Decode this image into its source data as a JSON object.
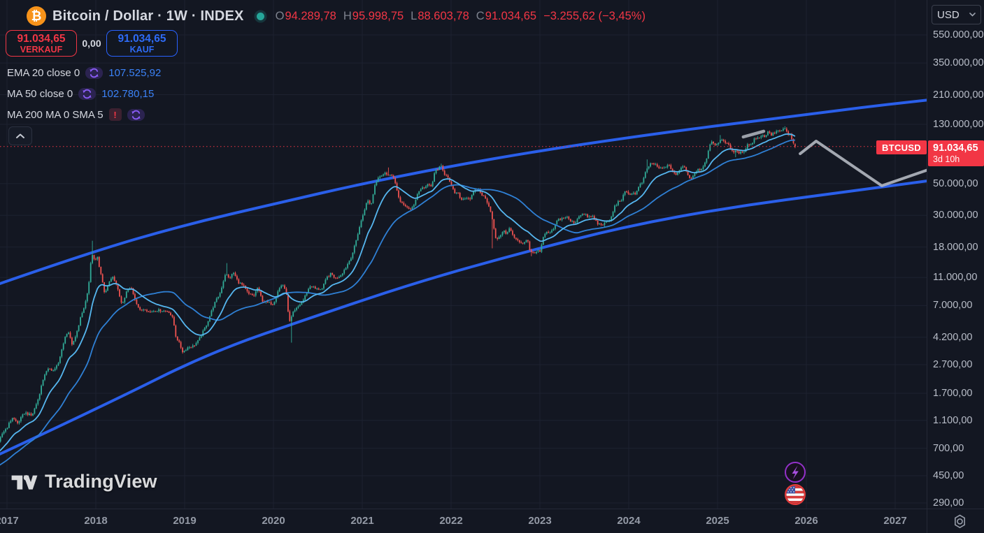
{
  "colors": {
    "background": "#131722",
    "grid": "#1d2230",
    "text_primary": "#d5d8e0",
    "text_secondary": "#7d818d",
    "axis_text": "#b9bec9",
    "red": "#f23645",
    "blue": "#2962ff",
    "value_blue": "#3b82f6",
    "candle_up": "#31ab97",
    "candle_down": "#ef5350",
    "ema20_line": "#56b7f0",
    "ma50_line": "#2f80d5",
    "channel_blue": "#2b63f6",
    "projection_gray": "#b4b8c1",
    "bitcoin_orange": "#f7931a",
    "status_dot_teal": "#26a69a",
    "label_red_bg": "#f23645",
    "purple_icon": "#8a5cf6",
    "flag_ring_red": "#e23b3b"
  },
  "header": {
    "bitcoin_glyph": "₿",
    "symbol_title": "Bitcoin / Dollar · 1W · INDEX",
    "ohlc": {
      "o_label": "O",
      "o": "94.289,78",
      "h_label": "H",
      "h": "95.998,75",
      "l_label": "L",
      "l": "88.603,78",
      "c_label": "C",
      "c": "91.034,65",
      "change": "−3.255,62 (−3,45%)"
    }
  },
  "trade_panel": {
    "sell": {
      "price": "91.034,65",
      "label": "VERKAUF"
    },
    "spread": "0,00",
    "buy": {
      "price": "91.034,65",
      "label": "KAUF"
    }
  },
  "indicators": [
    {
      "name": "EMA 20 close 0",
      "value": "107.525,92",
      "error": false
    },
    {
      "name": "MA 50 close 0",
      "value": "102.780,15",
      "error": false
    },
    {
      "name": "MA 200 MA 0 SMA 5",
      "value": "",
      "error": true
    }
  ],
  "chart_label": {
    "symbol": "BTCUSD"
  },
  "price_axis": {
    "currency": "USD",
    "current": {
      "price": "91.034,65",
      "countdown": "3d 10h"
    },
    "labels": [
      {
        "text": "550.000,00",
        "value": 550000
      },
      {
        "text": "350.000,00",
        "value": 350000
      },
      {
        "text": "210.000,00",
        "value": 210000
      },
      {
        "text": "130.000,00",
        "value": 130000
      },
      {
        "text": "50.000,00",
        "value": 50000
      },
      {
        "text": "30.000,00",
        "value": 30000
      },
      {
        "text": "18.000,00",
        "value": 18000
      },
      {
        "text": "11.000,00",
        "value": 11000
      },
      {
        "text": "7.000,00",
        "value": 7000
      },
      {
        "text": "4.200,00",
        "value": 4200
      },
      {
        "text": "2.700,00",
        "value": 2700
      },
      {
        "text": "1.700,00",
        "value": 1700
      },
      {
        "text": "1.100,00",
        "value": 1100
      },
      {
        "text": "700,00",
        "value": 700
      },
      {
        "text": "450,00",
        "value": 450
      },
      {
        "text": "290,00",
        "value": 290
      }
    ]
  },
  "time_axis": {
    "years": [
      {
        "label": "2017",
        "value": 2017
      },
      {
        "label": "2018",
        "value": 2018
      },
      {
        "label": "2019",
        "value": 2019
      },
      {
        "label": "2020",
        "value": 2020
      },
      {
        "label": "2021",
        "value": 2021
      },
      {
        "label": "2022",
        "value": 2022
      },
      {
        "label": "2023",
        "value": 2023
      },
      {
        "label": "2024",
        "value": 2024
      },
      {
        "label": "2025",
        "value": 2025
      },
      {
        "label": "2026",
        "value": 2026
      },
      {
        "label": "2027",
        "value": 2027
      }
    ]
  },
  "watermark": {
    "text": "TradingView"
  },
  "chart_data": {
    "type": "candlestick",
    "symbol": "BTCUSD",
    "timeframe": "1W",
    "price_scale": "log",
    "x_domain_years": [
      2016.92,
      2027.42
    ],
    "current_candle": {
      "open": 94289.78,
      "high": 95998.75,
      "low": 88603.78,
      "close": 91034.65,
      "change": -3255.62,
      "change_pct": -3.45
    },
    "overlays": [
      {
        "name": "EMA 20",
        "value": 107525.92,
        "color_key": "ema20_line"
      },
      {
        "name": "MA 50",
        "value": 102780.15,
        "color_key": "ma50_line"
      }
    ],
    "series_keypoints": [
      [
        2015.9,
        390
      ],
      [
        2016.15,
        418
      ],
      [
        2016.4,
        452
      ],
      [
        2016.55,
        578
      ],
      [
        2016.7,
        640
      ],
      [
        2016.8,
        700
      ],
      [
        2016.9,
        745
      ],
      [
        2016.95,
        900
      ],
      [
        2017,
        980
      ],
      [
        2017.06,
        1150
      ],
      [
        2017.12,
        1050
      ],
      [
        2017.2,
        1250
      ],
      [
        2017.28,
        1180
      ],
      [
        2017.35,
        1550
      ],
      [
        2017.42,
        2300
      ],
      [
        2017.48,
        2550
      ],
      [
        2017.52,
        2450
      ],
      [
        2017.58,
        2750
      ],
      [
        2017.65,
        4200
      ],
      [
        2017.7,
        4650
      ],
      [
        2017.73,
        3650
      ],
      [
        2017.78,
        4350
      ],
      [
        2017.83,
        5800
      ],
      [
        2017.88,
        7200
      ],
      [
        2017.92,
        9800
      ],
      [
        2017.955,
        16500
      ],
      [
        2017.985,
        14300
      ],
      [
        2018.02,
        15200
      ],
      [
        2018.06,
        11300
      ],
      [
        2018.1,
        8400
      ],
      [
        2018.15,
        10200
      ],
      [
        2018.2,
        11100
      ],
      [
        2018.25,
        8900
      ],
      [
        2018.3,
        7000
      ],
      [
        2018.35,
        8900
      ],
      [
        2018.4,
        9300
      ],
      [
        2018.45,
        7500
      ],
      [
        2018.5,
        6400
      ],
      [
        2018.55,
        6700
      ],
      [
        2018.6,
        6300
      ],
      [
        2018.68,
        6500
      ],
      [
        2018.75,
        6450
      ],
      [
        2018.82,
        6400
      ],
      [
        2018.87,
        5600
      ],
      [
        2018.9,
        4300
      ],
      [
        2018.94,
        3800
      ],
      [
        2018.98,
        3300
      ],
      [
        2019.03,
        3550
      ],
      [
        2019.1,
        3650
      ],
      [
        2019.16,
        4000
      ],
      [
        2019.25,
        5200
      ],
      [
        2019.33,
        7100
      ],
      [
        2019.4,
        8600
      ],
      [
        2019.46,
        11800
      ],
      [
        2019.5,
        10800
      ],
      [
        2019.55,
        11900
      ],
      [
        2019.6,
        10300
      ],
      [
        2019.66,
        9600
      ],
      [
        2019.72,
        8400
      ],
      [
        2019.78,
        8200
      ],
      [
        2019.82,
        9300
      ],
      [
        2019.88,
        7500
      ],
      [
        2019.94,
        7300
      ],
      [
        2020,
        7200
      ],
      [
        2020.05,
        8900
      ],
      [
        2020.1,
        9900
      ],
      [
        2020.14,
        8900
      ],
      [
        2020.18,
        5300
      ],
      [
        2020.22,
        6200
      ],
      [
        2020.28,
        6900
      ],
      [
        2020.33,
        7500
      ],
      [
        2020.38,
        8800
      ],
      [
        2020.42,
        9700
      ],
      [
        2020.48,
        9100
      ],
      [
        2020.55,
        9200
      ],
      [
        2020.6,
        11000
      ],
      [
        2020.65,
        11700
      ],
      [
        2020.7,
        10800
      ],
      [
        2020.76,
        11500
      ],
      [
        2020.82,
        13100
      ],
      [
        2020.88,
        15600
      ],
      [
        2020.92,
        18700
      ],
      [
        2020.96,
        23800
      ],
      [
        2021,
        29000
      ],
      [
        2021.03,
        33900
      ],
      [
        2021.06,
        38200
      ],
      [
        2021.1,
        35500
      ],
      [
        2021.14,
        48600
      ],
      [
        2021.18,
        55900
      ],
      [
        2021.22,
        57400
      ],
      [
        2021.26,
        59000
      ],
      [
        2021.3,
        58100
      ],
      [
        2021.34,
        56200
      ],
      [
        2021.38,
        49000
      ],
      [
        2021.42,
        37300
      ],
      [
        2021.46,
        35600
      ],
      [
        2021.5,
        34700
      ],
      [
        2021.54,
        32200
      ],
      [
        2021.58,
        35600
      ],
      [
        2021.62,
        42200
      ],
      [
        2021.66,
        46300
      ],
      [
        2021.7,
        47100
      ],
      [
        2021.74,
        48800
      ],
      [
        2021.78,
        47700
      ],
      [
        2021.82,
        61300
      ],
      [
        2021.86,
        64300
      ],
      [
        2021.89,
        65500
      ],
      [
        2021.92,
        58700
      ],
      [
        2021.96,
        57300
      ],
      [
        2022,
        47700
      ],
      [
        2022.04,
        43100
      ],
      [
        2022.08,
        42400
      ],
      [
        2022.12,
        38400
      ],
      [
        2022.16,
        40100
      ],
      [
        2022.22,
        39200
      ],
      [
        2022.26,
        44500
      ],
      [
        2022.3,
        46300
      ],
      [
        2022.34,
        42300
      ],
      [
        2022.38,
        39700
      ],
      [
        2022.42,
        36000
      ],
      [
        2022.46,
        29500
      ],
      [
        2022.5,
        20500
      ],
      [
        2022.54,
        20800
      ],
      [
        2022.58,
        23300
      ],
      [
        2022.62,
        22500
      ],
      [
        2022.66,
        24400
      ],
      [
        2022.7,
        21300
      ],
      [
        2022.74,
        20000
      ],
      [
        2022.78,
        19400
      ],
      [
        2022.82,
        19200
      ],
      [
        2022.86,
        20800
      ],
      [
        2022.89,
        16300
      ],
      [
        2022.93,
        16500
      ],
      [
        2022.97,
        16800
      ],
      [
        2023,
        16600
      ],
      [
        2023.04,
        21100
      ],
      [
        2023.08,
        23000
      ],
      [
        2023.12,
        22400
      ],
      [
        2023.16,
        24600
      ],
      [
        2023.2,
        28000
      ],
      [
        2023.25,
        28500
      ],
      [
        2023.3,
        29300
      ],
      [
        2023.35,
        27000
      ],
      [
        2023.4,
        26900
      ],
      [
        2023.45,
        30500
      ],
      [
        2023.5,
        30300
      ],
      [
        2023.55,
        29200
      ],
      [
        2023.6,
        29400
      ],
      [
        2023.65,
        26100
      ],
      [
        2023.7,
        25900
      ],
      [
        2023.75,
        26600
      ],
      [
        2023.8,
        28500
      ],
      [
        2023.84,
        34500
      ],
      [
        2023.88,
        37100
      ],
      [
        2023.92,
        38700
      ],
      [
        2023.96,
        43800
      ],
      [
        2024,
        42300
      ],
      [
        2024.04,
        42900
      ],
      [
        2024.08,
        42600
      ],
      [
        2024.12,
        48300
      ],
      [
        2024.16,
        52100
      ],
      [
        2024.2,
        62500
      ],
      [
        2024.24,
        68500
      ],
      [
        2024.27,
        69600
      ],
      [
        2024.3,
        67200
      ],
      [
        2024.34,
        64000
      ],
      [
        2024.38,
        63900
      ],
      [
        2024.42,
        66300
      ],
      [
        2024.46,
        66200
      ],
      [
        2024.5,
        60800
      ],
      [
        2024.54,
        57000
      ],
      [
        2024.58,
        63200
      ],
      [
        2024.62,
        68200
      ],
      [
        2024.66,
        58100
      ],
      [
        2024.7,
        54000
      ],
      [
        2024.74,
        59100
      ],
      [
        2024.78,
        63600
      ],
      [
        2024.82,
        62900
      ],
      [
        2024.85,
        69400
      ],
      [
        2024.88,
        76700
      ],
      [
        2024.91,
        91000
      ],
      [
        2024.94,
        97900
      ],
      [
        2024.98,
        94200
      ],
      [
        2025.01,
        94600
      ],
      [
        2025.04,
        104500
      ],
      [
        2025.08,
        97700
      ],
      [
        2025.12,
        96100
      ],
      [
        2025.15,
        84700
      ],
      [
        2025.19,
        84400
      ],
      [
        2025.22,
        82600
      ],
      [
        2025.26,
        82400
      ],
      [
        2025.3,
        85000
      ],
      [
        2025.34,
        94300
      ],
      [
        2025.38,
        94000
      ],
      [
        2025.42,
        103900
      ],
      [
        2025.46,
        105600
      ],
      [
        2025.5,
        108200
      ],
      [
        2025.54,
        108000
      ],
      [
        2025.58,
        117500
      ],
      [
        2025.6,
        108600
      ],
      [
        2025.64,
        113500
      ],
      [
        2025.68,
        117400
      ],
      [
        2025.72,
        115800
      ],
      [
        2025.755,
        122400
      ],
      [
        2025.79,
        111000
      ],
      [
        2025.82,
        110100
      ],
      [
        2025.85,
        95600
      ],
      [
        2025.875,
        91035
      ]
    ],
    "wick_events": [
      [
        2017.96,
        19900
      ],
      [
        2019.47,
        13880
      ],
      [
        2020.21,
        3850
      ],
      [
        2021.29,
        64900
      ],
      [
        2021.88,
        69000
      ],
      [
        2022.47,
        17600
      ],
      [
        2022.9,
        15500
      ],
      [
        2024.21,
        73800
      ],
      [
        2025.04,
        109400
      ],
      [
        2025.2,
        76600
      ],
      [
        2025.755,
        126200
      ]
    ],
    "trendlines": {
      "channel_upper": [
        [
          2016.92,
          9970
        ],
        [
          2017.94,
          16550
        ],
        [
          2019.0,
          25680
        ],
        [
          2020.07,
          36840
        ],
        [
          2021.0,
          49930
        ],
        [
          2021.99,
          66170
        ],
        [
          2022.99,
          84760
        ],
        [
          2023.99,
          105000
        ],
        [
          2024.99,
          127200
        ],
        [
          2025.89,
          148900
        ],
        [
          2026.67,
          172400
        ],
        [
          2027.42,
          194000
        ]
      ],
      "channel_lower": [
        [
          2016.92,
          638
        ],
        [
          2018.1,
          1404
        ],
        [
          2019.28,
          3268
        ],
        [
          2020.46,
          5870
        ],
        [
          2021.64,
          10310
        ],
        [
          2022.82,
          16550
        ],
        [
          2024.0,
          25390
        ],
        [
          2025.18,
          34420
        ],
        [
          2026.36,
          43110
        ],
        [
          2027.42,
          52810
        ]
      ],
      "projection": [
        [
          2025.93,
          81000
        ],
        [
          2026.11,
          99200
        ],
        [
          2026.85,
          48300
        ],
        [
          2027.42,
          64000
        ]
      ],
      "projection_arrow": [
        [
          2025.29,
          106200
        ],
        [
          2025.52,
          116300
        ]
      ]
    }
  }
}
